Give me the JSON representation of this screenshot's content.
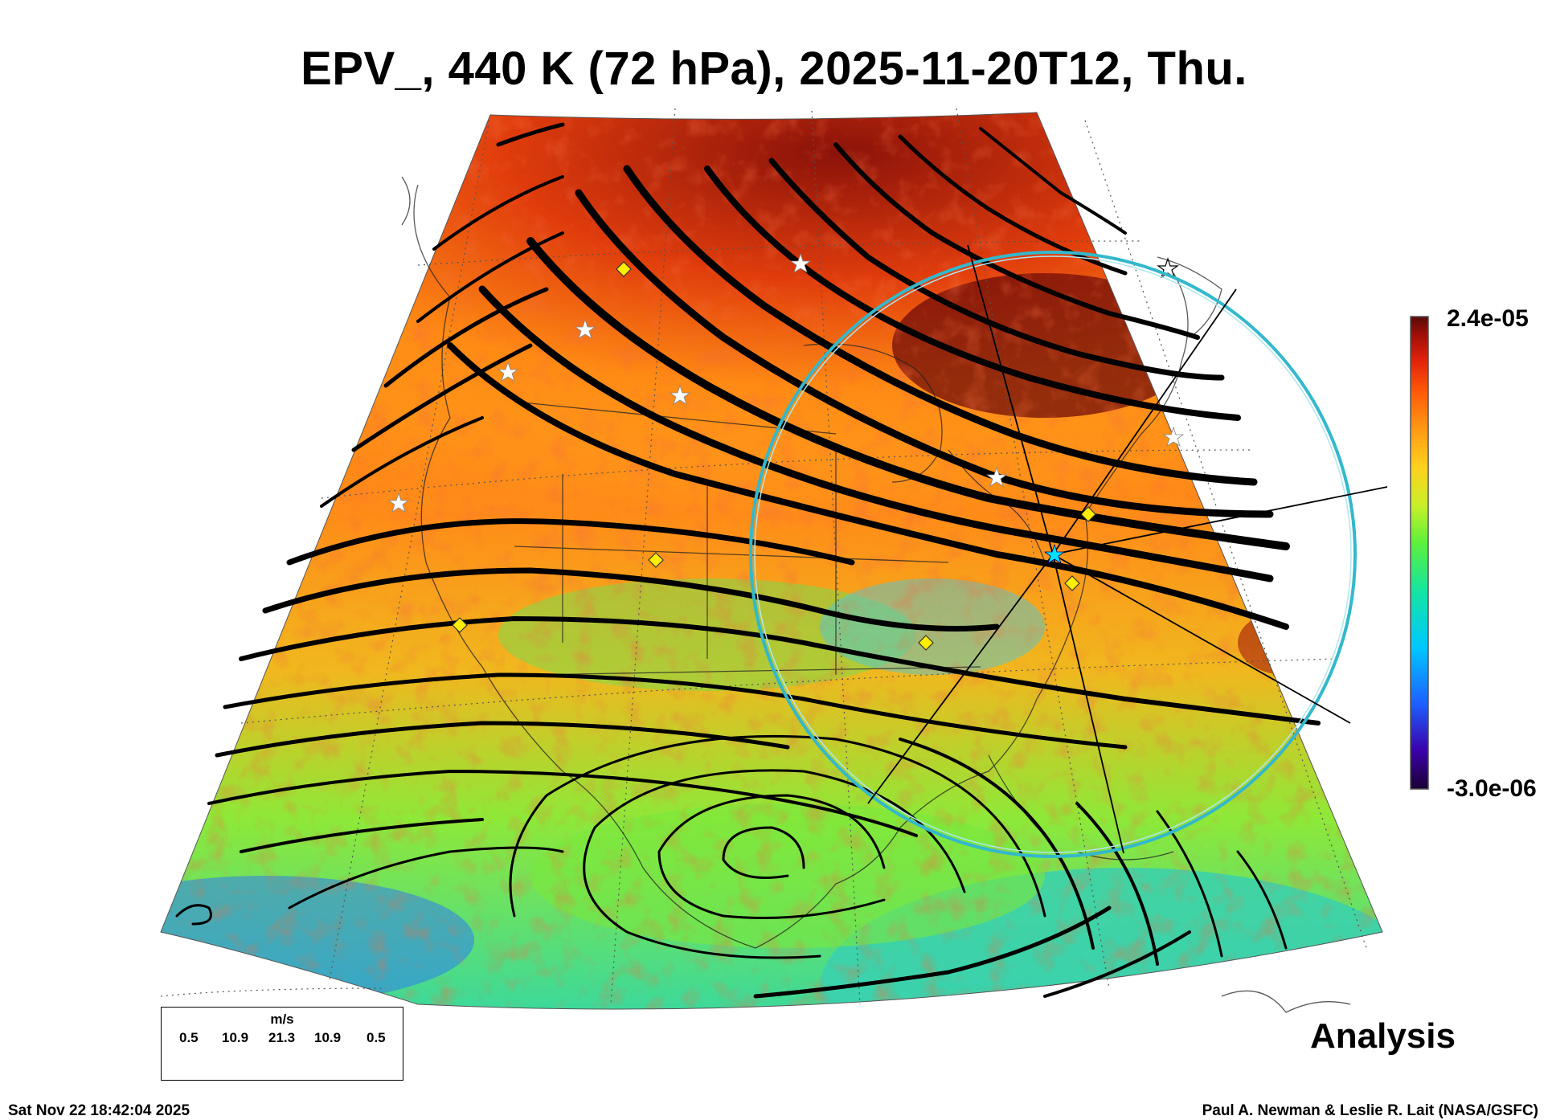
{
  "title": "EPV_, 440 K (72 hPa), 2025-11-20T12, Thu.",
  "colorbar": {
    "max_label": "2.4e-05",
    "min_label": "-3.0e-06",
    "colors": [
      "#1a0033",
      "#3b00a8",
      "#1d5fff",
      "#00c8ff",
      "#14e6a0",
      "#5cf03c",
      "#c8f028",
      "#ffd21e",
      "#ff9a14",
      "#ff5a0a",
      "#e0200a",
      "#a01008",
      "#5a0a08"
    ]
  },
  "wind_legend": {
    "unit": "m/s",
    "values": [
      "0.5",
      "10.9",
      "21.3",
      "10.9",
      "0.5"
    ]
  },
  "label_analysis": "Analysis",
  "timestamp": "Sat Nov 22 18:42:04 2025",
  "credit": "Paul A. Newman & Leslie R. Lait (NASA/GSFC)",
  "circle_color": "#33b8cc"
}
